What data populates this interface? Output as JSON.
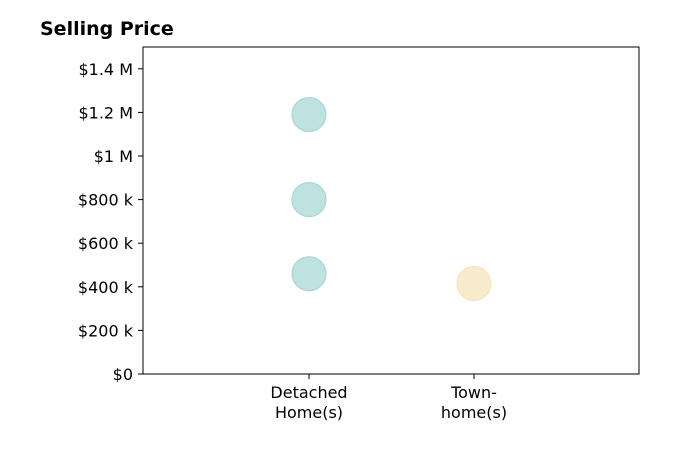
{
  "chart_data": {
    "type": "scatter",
    "title": "Selling Price",
    "xlabel": "",
    "ylabel": "",
    "categories": [
      "Detached\nHome(s)",
      "Town-\nhome(s)"
    ],
    "ylim": [
      0,
      1500000
    ],
    "yticks": [
      {
        "value": 0,
        "label": "$0"
      },
      {
        "value": 200000,
        "label": "$200 k"
      },
      {
        "value": 400000,
        "label": "$400 k"
      },
      {
        "value": 600000,
        "label": "$600 k"
      },
      {
        "value": 800000,
        "label": "$800 k"
      },
      {
        "value": 1000000,
        "label": "$1 M"
      },
      {
        "value": 1200000,
        "label": "$1.2 M"
      },
      {
        "value": 1400000,
        "label": "$1.4 M"
      }
    ],
    "grid": false,
    "legend": "none",
    "points": [
      {
        "category": 0,
        "value": 1190000,
        "color": "#a8d8d4"
      },
      {
        "category": 0,
        "value": 800000,
        "color": "#a8d8d4"
      },
      {
        "category": 0,
        "value": 460000,
        "color": "#a8d8d4"
      },
      {
        "category": 1,
        "value": 415000,
        "color": "#f5e5bd"
      }
    ]
  }
}
